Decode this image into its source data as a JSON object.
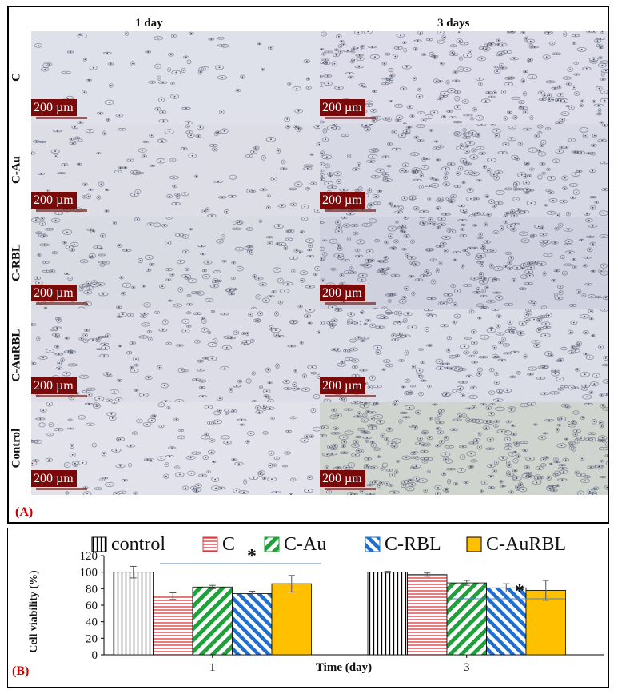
{
  "panel_a": {
    "tag": "(A)",
    "column_headers": [
      "1 day",
      "3 days"
    ],
    "row_labels": [
      "C",
      "C-Au",
      "C-RBL",
      "C-AuRBL",
      "Control"
    ],
    "scale_bar_label": "200 µm"
  },
  "panel_b": {
    "tag": "(B)"
  },
  "chart_data": {
    "type": "bar",
    "categories": [
      "1",
      "3"
    ],
    "xlabel": "Time (day)",
    "ylabel": "Cell viability (%)",
    "ylim": [
      0,
      120
    ],
    "yticks": [
      "0",
      "20",
      "40",
      "60",
      "80",
      "100",
      "120"
    ],
    "legend_position": "top",
    "series": [
      {
        "name": "control",
        "values": [
          100,
          100
        ],
        "errors": [
          7,
          1
        ],
        "pattern": "vertical-lines",
        "color": "#ffffff"
      },
      {
        "name": "C",
        "values": [
          71,
          97
        ],
        "errors": [
          4,
          2
        ],
        "pattern": "horizontal-lines",
        "color": "#e0343a"
      },
      {
        "name": "C-Au",
        "values": [
          82,
          87
        ],
        "errors": [
          2,
          3
        ],
        "pattern": "diagonal-green",
        "color": "#1fa13a"
      },
      {
        "name": "C-RBL",
        "values": [
          74,
          81
        ],
        "errors": [
          3,
          5
        ],
        "pattern": "diagonal-blue",
        "color": "#1f6fd1"
      },
      {
        "name": "C-AuRBL",
        "values": [
          86,
          78
        ],
        "errors": [
          10,
          12
        ],
        "pattern": "solid",
        "color": "#ffc000"
      }
    ],
    "annotations": [
      {
        "text": "*",
        "category": "1"
      },
      {
        "text": "*",
        "category": "3"
      }
    ]
  }
}
